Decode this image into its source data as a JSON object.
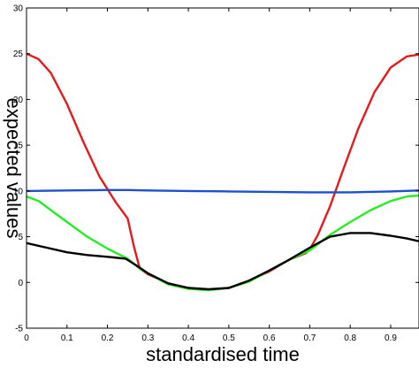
{
  "chart_data": {
    "type": "line",
    "title": "",
    "xlabel": "standardised time",
    "ylabel": "expected values",
    "xlim": [
      0,
      0.97
    ],
    "ylim": [
      -5,
      30
    ],
    "xticks": [
      0,
      0.1,
      0.2,
      0.3,
      0.4,
      0.5,
      0.6,
      0.7,
      0.8,
      0.9
    ],
    "xtick_labels": [
      "0",
      "0.1",
      "0.2",
      "0.3",
      "0.4",
      "0.5",
      "0.6",
      "0.7",
      "0.8",
      "0.9"
    ],
    "yticks": [
      -5,
      0,
      5,
      10,
      15,
      20,
      25,
      30
    ],
    "ytick_labels": [
      "-5",
      "0",
      "5",
      "10",
      "15",
      "20",
      "25",
      "30"
    ],
    "grid": false,
    "legend": "none",
    "series": [
      {
        "color": "#e41a1c",
        "x": [
          0,
          0.03,
          0.06,
          0.1,
          0.14,
          0.18,
          0.22,
          0.25,
          0.265,
          0.28,
          0.3,
          0.35,
          0.4,
          0.45,
          0.5,
          0.55,
          0.6,
          0.65,
          0.69,
          0.7,
          0.72,
          0.75,
          0.78,
          0.82,
          0.86,
          0.9,
          0.94,
          0.97
        ],
        "y": [
          25.0,
          24.4,
          22.9,
          19.5,
          15.4,
          11.6,
          8.8,
          7.0,
          4.0,
          1.5,
          0.9,
          -0.1,
          -0.6,
          -0.8,
          -0.6,
          0.2,
          1.2,
          2.5,
          3.2,
          3.6,
          5.2,
          8.3,
          12.0,
          16.8,
          20.8,
          23.5,
          24.7,
          24.9
        ]
      },
      {
        "color": "#1f4fd1",
        "x": [
          0,
          0.1,
          0.2,
          0.25,
          0.3,
          0.4,
          0.5,
          0.6,
          0.7,
          0.8,
          0.9,
          0.97
        ],
        "y": [
          10.0,
          10.05,
          10.1,
          10.1,
          10.05,
          10.0,
          9.95,
          9.9,
          9.85,
          9.85,
          9.95,
          10.05
        ]
      },
      {
        "color": "#22ee22",
        "x": [
          0,
          0.03,
          0.06,
          0.1,
          0.15,
          0.2,
          0.25,
          0.28,
          0.3,
          0.35,
          0.4,
          0.45,
          0.5,
          0.55,
          0.6,
          0.65,
          0.7,
          0.75,
          0.8,
          0.85,
          0.9,
          0.94,
          0.97
        ],
        "y": [
          9.4,
          8.9,
          7.9,
          6.6,
          5.0,
          3.7,
          2.6,
          1.5,
          1.0,
          -0.2,
          -0.7,
          -0.85,
          -0.6,
          0.1,
          1.3,
          2.5,
          3.5,
          5.2,
          6.6,
          7.9,
          8.9,
          9.4,
          9.5
        ]
      },
      {
        "color": "#000000",
        "x": [
          0,
          0.05,
          0.1,
          0.15,
          0.2,
          0.245,
          0.27,
          0.3,
          0.35,
          0.4,
          0.45,
          0.5,
          0.55,
          0.6,
          0.65,
          0.7,
          0.75,
          0.8,
          0.85,
          0.9,
          0.94,
          0.97
        ],
        "y": [
          4.3,
          3.8,
          3.3,
          3.0,
          2.8,
          2.6,
          1.9,
          1.0,
          -0.1,
          -0.6,
          -0.75,
          -0.6,
          0.2,
          1.3,
          2.5,
          3.8,
          5.0,
          5.4,
          5.4,
          5.1,
          4.8,
          4.5
        ]
      }
    ]
  }
}
